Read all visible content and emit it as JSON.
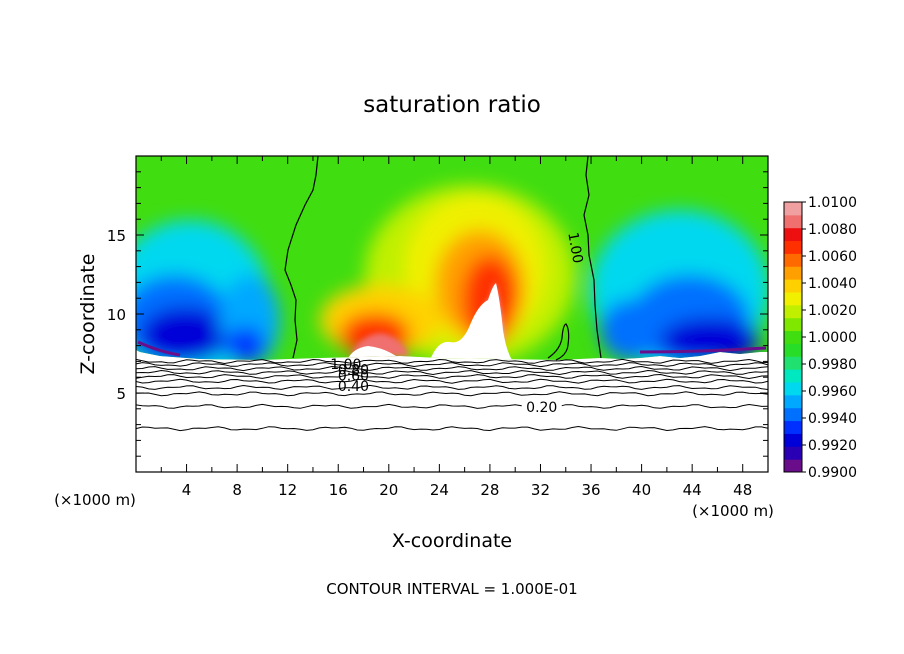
{
  "chart_data": {
    "type": "heatmap",
    "title": "saturation ratio",
    "xlabel": "X-coordinate",
    "ylabel": "Z-coordinate",
    "x_unit": "(×1000 m)",
    "y_unit": "(×1000 m)",
    "xlim": [
      0,
      50
    ],
    "ylim": [
      0,
      20
    ],
    "x_ticks": [
      4,
      8,
      12,
      16,
      20,
      24,
      28,
      32,
      36,
      40,
      44,
      48
    ],
    "y_ticks": [
      5,
      10,
      15
    ],
    "footer": "CONTOUR INTERVAL = 1.000E-01",
    "colorbar": {
      "levels": [
        0.99,
        0.991,
        0.992,
        0.993,
        0.994,
        0.995,
        0.996,
        0.997,
        0.998,
        0.999,
        1.0,
        1.001,
        1.002,
        1.003,
        1.004,
        1.005,
        1.006,
        1.007,
        1.008,
        1.009,
        1.01
      ],
      "tick_labels": [
        "0.9900",
        "0.9920",
        "0.9940",
        "0.9960",
        "0.9980",
        "1.0000",
        "1.0020",
        "1.0040",
        "1.0060",
        "1.0080",
        "1.0100"
      ],
      "colors": [
        "#6a0d8a",
        "#2a00b4",
        "#0000d8",
        "#0030ff",
        "#0070ff",
        "#00a8ff",
        "#00d8f0",
        "#00e8c0",
        "#20e070",
        "#28dd28",
        "#40dd10",
        "#80e800",
        "#c0f000",
        "#f0f000",
        "#ffd000",
        "#ffa000",
        "#ff6a00",
        "#ff3000",
        "#ee1010",
        "#f07070",
        "#f0a0a0"
      ]
    },
    "contour_labels": [
      {
        "text": "1.00",
        "x": 34.8,
        "y": 14.2,
        "rotate": 80
      },
      {
        "text": "1.00",
        "x": 16.6,
        "y": 6.85,
        "rotate": 0
      },
      {
        "text": "0.80",
        "x": 17.2,
        "y": 6.5,
        "rotate": 0
      },
      {
        "text": "0.60",
        "x": 17.2,
        "y": 6.1,
        "rotate": 0
      },
      {
        "text": "0.40",
        "x": 17.2,
        "y": 5.45,
        "rotate": 0
      },
      {
        "text": "0.20",
        "x": 32.1,
        "y": 4.1,
        "rotate": 0
      }
    ],
    "contour_z_levels": [
      2.75,
      4.15,
      4.95,
      5.35,
      5.75,
      6.05,
      6.3,
      6.55,
      6.8,
      7.0
    ]
  }
}
